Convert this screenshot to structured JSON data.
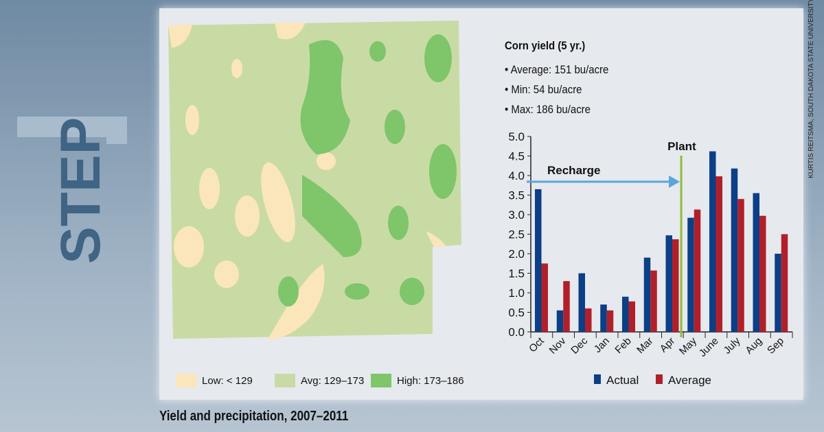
{
  "step": {
    "word": "STEP",
    "number": "1"
  },
  "credit": "KURTIS REITSMA, SOUTH DAKOTA STATE UNIVERSITY EXTENSION",
  "caption": "Yield and precipitation, 2007–2011",
  "info": {
    "title": "Corn yield (5 yr.)",
    "items": [
      "• Average: 151 bu/acre",
      "• Min: 54 bu/acre",
      "• Max: 186 bu/acre"
    ]
  },
  "map_legend": [
    {
      "label": "Low: < 129",
      "color": "#fbe6bb"
    },
    {
      "label": "Avg: 129–173",
      "color": "#c9dba4"
    },
    {
      "label": "High: 173–186",
      "color": "#7fc56a"
    }
  ],
  "chart_data": {
    "type": "bar",
    "categories": [
      "Oct",
      "Nov",
      "Dec",
      "Jan",
      "Feb",
      "Mar",
      "Apr",
      "May",
      "June",
      "July",
      "Aug",
      "Sep"
    ],
    "series": [
      {
        "name": "Actual",
        "color": "#0b3f86",
        "values": [
          3.65,
          0.55,
          1.5,
          0.7,
          0.9,
          1.9,
          2.47,
          2.92,
          4.62,
          4.18,
          3.55,
          2.0
        ]
      },
      {
        "name": "Average",
        "color": "#b0202a",
        "values": [
          1.75,
          1.3,
          0.6,
          0.55,
          0.78,
          1.57,
          2.37,
          3.13,
          3.98,
          3.4,
          2.97,
          2.5
        ]
      }
    ],
    "ylim": [
      0,
      5
    ],
    "yticks": [
      "0.0",
      "0.5",
      "1.0",
      "1.5",
      "2.0",
      "2.5",
      "3.0",
      "3.5",
      "4.0",
      "4.5",
      "5.0"
    ],
    "annotations": {
      "plant": "Plant",
      "recharge": "Recharge"
    },
    "legend": "bottom"
  }
}
